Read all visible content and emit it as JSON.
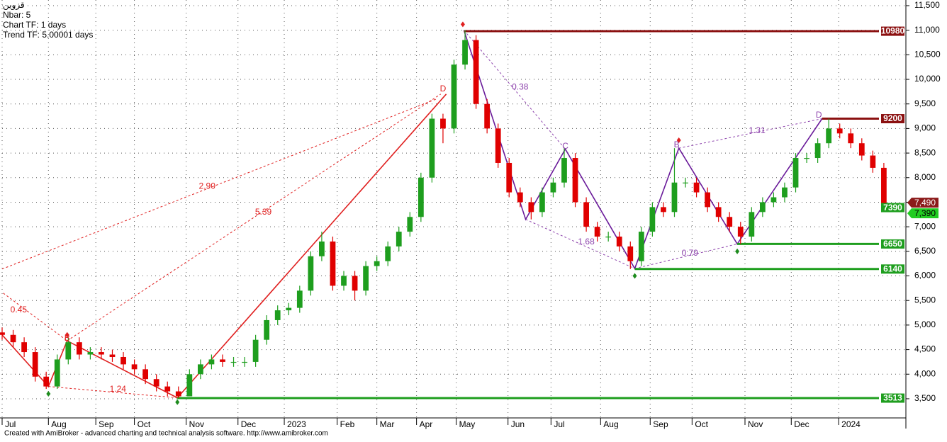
{
  "chart_data": {
    "type": "candlestick",
    "header_lines": [
      "قزوین",
      "Nbar: 5",
      "Chart TF: 1 days",
      "Trend TF: 5.00001 days"
    ],
    "credit": "Created with AmiBroker - advanced charting and technical analysis software. http://www.amibroker.com",
    "up_color": "#1e9e1e",
    "down_color": "#e00000",
    "grid": true,
    "xlim": [
      0,
      82
    ],
    "ylim": [
      3110,
      11615
    ],
    "xticks": [
      {
        "value": 0,
        "label": "Jul"
      },
      {
        "value": 4.2,
        "label": "Aug"
      },
      {
        "value": 8.5,
        "label": "Sep"
      },
      {
        "value": 12,
        "label": "Oct"
      },
      {
        "value": 16.7,
        "label": "Nov"
      },
      {
        "value": 21.4,
        "label": "Dec"
      },
      {
        "value": 25.6,
        "label": "2023"
      },
      {
        "value": 30.4,
        "label": "Feb"
      },
      {
        "value": 34,
        "label": "Mar"
      },
      {
        "value": 37.6,
        "label": "Apr"
      },
      {
        "value": 41.2,
        "label": "May"
      },
      {
        "value": 45.9,
        "label": "Jun"
      },
      {
        "value": 49.8,
        "label": "Jul"
      },
      {
        "value": 54.3,
        "label": "Aug"
      },
      {
        "value": 58.8,
        "label": "Sep"
      },
      {
        "value": 62.6,
        "label": "Oct"
      },
      {
        "value": 67.4,
        "label": "Nov"
      },
      {
        "value": 71.6,
        "label": "Dec"
      },
      {
        "value": 75.9,
        "label": "2024"
      }
    ],
    "yticks": [
      {
        "value": 11500,
        "label": "11,500"
      },
      {
        "value": 11000,
        "label": "11,000"
      },
      {
        "value": 10500,
        "label": "10,500"
      },
      {
        "value": 10000,
        "label": "10,000"
      },
      {
        "value": 9500,
        "label": "9,500"
      },
      {
        "value": 9000,
        "label": "9,000"
      },
      {
        "value": 8500,
        "label": "8,500"
      },
      {
        "value": 8000,
        "label": "8,000"
      },
      {
        "value": 7500,
        "label": "7,500"
      },
      {
        "value": 7000,
        "label": "7,000"
      },
      {
        "value": 6500,
        "label": "6,500"
      },
      {
        "value": 6000,
        "label": "6,000"
      },
      {
        "value": 5500,
        "label": "5,500"
      },
      {
        "value": 5000,
        "label": "5,000"
      },
      {
        "value": 4500,
        "label": "4,500"
      },
      {
        "value": 4000,
        "label": "4,000"
      },
      {
        "value": 3500,
        "label": "3,500"
      }
    ],
    "x": [
      0,
      1,
      2,
      3,
      4,
      5,
      6,
      7,
      8,
      9,
      10,
      11,
      12,
      13,
      14,
      15,
      16,
      17,
      18,
      19,
      20,
      21,
      22,
      23,
      24,
      25,
      26,
      27,
      28,
      29,
      30,
      31,
      32,
      33,
      34,
      35,
      36,
      37,
      38,
      39,
      40,
      41,
      42,
      43,
      44,
      45,
      46,
      47,
      48,
      49,
      50,
      51,
      52,
      53,
      54,
      55,
      56,
      57,
      58,
      59,
      60,
      61,
      62,
      63,
      64,
      65,
      66,
      67,
      68,
      69,
      70,
      71,
      72,
      73,
      74,
      75,
      76,
      77,
      78,
      79,
      80
    ],
    "open": [
      4850,
      4800,
      4650,
      4450,
      3950,
      3750,
      4300,
      4650,
      4400,
      4450,
      4400,
      4350,
      4200,
      4100,
      3900,
      3750,
      3650,
      3550,
      4000,
      4200,
      4300,
      4250,
      4250,
      4250,
      4700,
      5100,
      5300,
      5350,
      5700,
      6400,
      6700,
      5800,
      6000,
      5700,
      6200,
      6300,
      6600,
      6900,
      7200,
      8000,
      9200,
      9000,
      10300,
      10800,
      9500,
      9000,
      8300,
      7700,
      7500,
      7300,
      7700,
      7900,
      8400,
      7500,
      7000,
      6800,
      6800,
      6600,
      6300,
      6900,
      7400,
      7300,
      7900,
      7900,
      7700,
      7400,
      7200,
      7000,
      6800,
      7300,
      7500,
      7600,
      7800,
      8400,
      8400,
      8700,
      9000,
      8900,
      8700,
      8450,
      8200
    ],
    "high": [
      4950,
      4900,
      4750,
      4550,
      4050,
      4400,
      4750,
      4750,
      4550,
      4550,
      4500,
      4450,
      4300,
      4200,
      4000,
      3850,
      3750,
      4100,
      4300,
      4400,
      4400,
      4350,
      4350,
      4800,
      5200,
      5400,
      5450,
      5800,
      6500,
      6900,
      6800,
      6100,
      6100,
      6300,
      6400,
      6700,
      7000,
      7300,
      8100,
      9300,
      9300,
      10400,
      11000,
      10900,
      9600,
      9100,
      8400,
      7800,
      7600,
      7800,
      8000,
      8600,
      8500,
      7600,
      7100,
      6900,
      6900,
      6700,
      7000,
      7500,
      7500,
      8600,
      8000,
      8000,
      7800,
      7500,
      7300,
      7100,
      7400,
      7600,
      7700,
      7900,
      8500,
      8500,
      8800,
      9200,
      9100,
      9000,
      8800,
      8550,
      8300
    ],
    "low": [
      4700,
      4550,
      4350,
      3850,
      3700,
      3700,
      4200,
      4300,
      4300,
      4300,
      4250,
      4100,
      4000,
      3800,
      3650,
      3550,
      3513,
      3550,
      3900,
      4100,
      4150,
      4150,
      4150,
      4150,
      4600,
      5000,
      5200,
      5250,
      5600,
      6300,
      5700,
      5700,
      5500,
      5600,
      6100,
      6200,
      6500,
      6800,
      7100,
      7900,
      8700,
      8900,
      10200,
      9400,
      8900,
      8200,
      7600,
      7400,
      7150,
      7200,
      7600,
      7800,
      7400,
      6900,
      6700,
      6700,
      6500,
      6140,
      6200,
      6800,
      7200,
      7200,
      7800,
      7600,
      7300,
      7100,
      6900,
      6650,
      6700,
      7200,
      7400,
      7500,
      7700,
      8300,
      8300,
      8600,
      8800,
      8600,
      8350,
      8100,
      7300
    ],
    "close": [
      4800,
      4650,
      4450,
      3950,
      3750,
      4300,
      4650,
      4400,
      4450,
      4400,
      4350,
      4200,
      4100,
      3900,
      3750,
      3650,
      3550,
      4000,
      4200,
      4300,
      4250,
      4250,
      4250,
      4700,
      5100,
      5300,
      5350,
      5700,
      6400,
      6700,
      5800,
      6000,
      5700,
      6200,
      6300,
      6600,
      6900,
      7200,
      8000,
      9200,
      9000,
      10300,
      10800,
      9500,
      9000,
      8300,
      7700,
      7500,
      7300,
      7700,
      7900,
      8400,
      7500,
      7000,
      6800,
      6800,
      6600,
      6300,
      6900,
      7400,
      7300,
      7900,
      7900,
      7700,
      7400,
      7200,
      7000,
      6800,
      7300,
      7500,
      7600,
      7800,
      8400,
      8400,
      8700,
      9000,
      8900,
      8700,
      8450,
      8200,
      7390
    ],
    "zigzags": [
      {
        "color": "#e02020",
        "x": [
          0,
          4.2,
          5.9,
          15.9,
          40.3
        ],
        "y": [
          4800,
          3750,
          4680,
          3520,
          9700
        ]
      },
      {
        "color": "#6a1b9a",
        "x": [
          41.9,
          47.5,
          51.1,
          57.4,
          61.4,
          66.7,
          74.4
        ],
        "y": [
          11000,
          7150,
          8580,
          6150,
          8600,
          6650,
          9200
        ]
      }
    ],
    "dashed_lines": [
      {
        "color": "#e02020",
        "x": [
          0,
          39.4
        ],
        "y": [
          6140,
          9600
        ]
      },
      {
        "color": "#e02020",
        "x": [
          5.9,
          39.8
        ],
        "y": [
          4680,
          9700
        ]
      },
      {
        "color": "#e02020",
        "x": [
          0.1,
          5.9
        ],
        "y": [
          5650,
          4680
        ]
      },
      {
        "color": "#e02020",
        "x": [
          4.2,
          15.9
        ],
        "y": [
          3750,
          3520
        ]
      },
      {
        "color": "#8e44ad",
        "x": [
          41.9,
          51.1
        ],
        "y": [
          11000,
          8580
        ]
      },
      {
        "color": "#8e44ad",
        "x": [
          47.5,
          57.4
        ],
        "y": [
          7150,
          6150
        ]
      },
      {
        "color": "#8e44ad",
        "x": [
          57.4,
          66.7
        ],
        "y": [
          6150,
          6650
        ]
      },
      {
        "color": "#8e44ad",
        "x": [
          61.4,
          74.4
        ],
        "y": [
          8600,
          9200
        ]
      }
    ],
    "annotations": [
      {
        "text": "0.45",
        "x": 1.5,
        "y": 5300,
        "color": "#e02020"
      },
      {
        "text": "1.24",
        "x": 10.5,
        "y": 3690,
        "color": "#e02020"
      },
      {
        "text": "2.90",
        "x": 18.6,
        "y": 7820,
        "color": "#e02020"
      },
      {
        "text": "5.39",
        "x": 23.7,
        "y": 7290,
        "color": "#e02020"
      },
      {
        "text": "B",
        "x": 5.9,
        "y": 4725,
        "color": "#e02020"
      },
      {
        "text": "D",
        "x": 40,
        "y": 9800,
        "color": "#e02020"
      },
      {
        "text": "0.38",
        "x": 47,
        "y": 9840,
        "color": "#8e44ad"
      },
      {
        "text": "1.68",
        "x": 53,
        "y": 6690,
        "color": "#8e44ad"
      },
      {
        "text": "0.79",
        "x": 62.4,
        "y": 6455,
        "color": "#8e44ad"
      },
      {
        "text": "1.31",
        "x": 68.5,
        "y": 8950,
        "color": "#8e44ad"
      },
      {
        "text": "C",
        "x": 51.1,
        "y": 8630,
        "color": "#8e44ad"
      },
      {
        "text": "B",
        "x": 61.2,
        "y": 8660,
        "color": "#8e44ad"
      },
      {
        "text": "D",
        "x": 74.1,
        "y": 9270,
        "color": "#8e44ad"
      }
    ],
    "pivot_markers": [
      {
        "x": 5.9,
        "y": 4800,
        "color": "#e02020"
      },
      {
        "x": 41.8,
        "y": 11120,
        "color": "#e02020"
      },
      {
        "x": 61.4,
        "y": 8760,
        "color": "#e02020"
      },
      {
        "x": 4.2,
        "y": 3600,
        "color": "#1e8c1e"
      },
      {
        "x": 15.9,
        "y": 3430,
        "color": "#1e8c1e"
      },
      {
        "x": 57.4,
        "y": 6000,
        "color": "#1e8c1e"
      },
      {
        "x": 66.7,
        "y": 6500,
        "color": "#1e8c1e"
      }
    ],
    "levels": [
      {
        "value": 10980,
        "color": "#8b1010",
        "from": 41.9,
        "line": true
      },
      {
        "value": 9200,
        "color": "#8b1010",
        "from": 74.4,
        "line": true
      },
      {
        "value": 7390,
        "color": "#1e9e1e",
        "from": 80,
        "line": false
      },
      {
        "value": 6650,
        "color": "#1e9e1e",
        "from": 66.7,
        "line": true
      },
      {
        "value": 6140,
        "color": "#1e9e1e",
        "from": 57.4,
        "line": true
      },
      {
        "value": 3513,
        "color": "#1e9e1e",
        "from": 15.9,
        "line": true
      }
    ],
    "price_labels": [
      {
        "value": 7490,
        "label": "7,490",
        "color": "#8b1a1a"
      },
      {
        "value": 7390,
        "label": "7,390",
        "color": "#22cc22"
      }
    ]
  }
}
